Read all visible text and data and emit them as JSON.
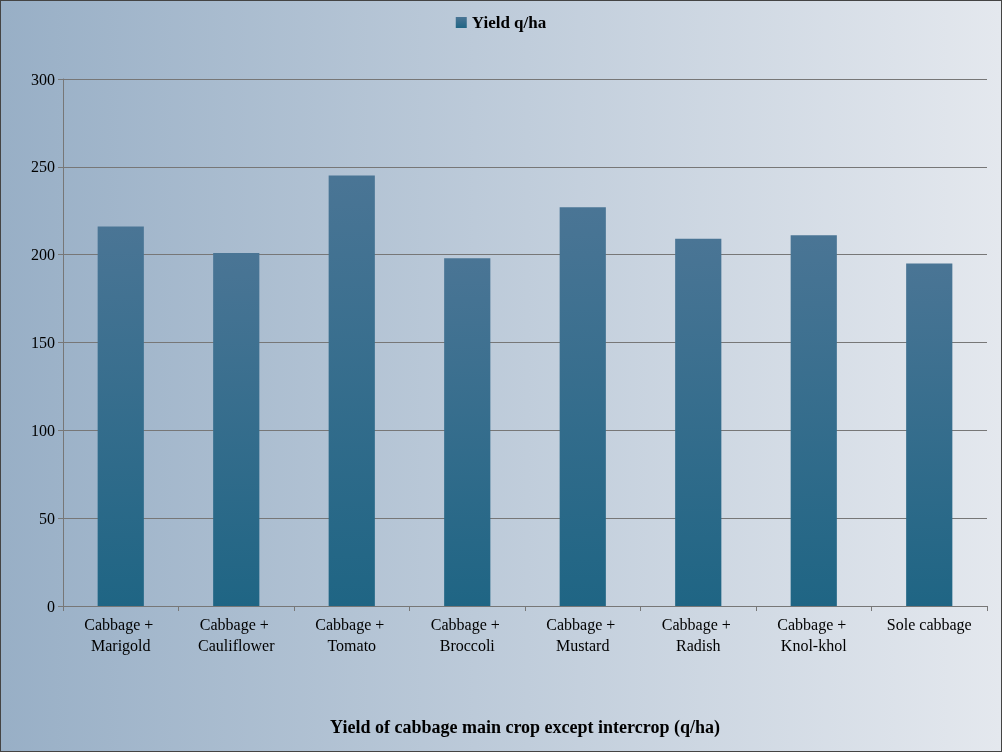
{
  "chart_data": {
    "type": "bar",
    "xlabel": "Yield of cabbage main crop except intercrop (q/ha)",
    "categories": [
      "Cabbage + Marigold",
      "Cabbage + Cauliflower",
      "Cabbage + Tomato",
      "Cabbage + Broccoli",
      "Cabbage + Mustard",
      "Cabbage + Radish",
      "Cabbage + Knol-khol",
      "Sole cabbage"
    ],
    "series": [
      {
        "name": "Yield q/ha",
        "color": "#1f6584",
        "values": [
          216,
          201,
          245,
          198,
          227,
          209,
          211,
          195
        ]
      }
    ],
    "ylim": [
      0,
      300
    ],
    "yticks": [
      0,
      50,
      100,
      150,
      200,
      250,
      300
    ],
    "grid": "y",
    "legend": "top"
  }
}
